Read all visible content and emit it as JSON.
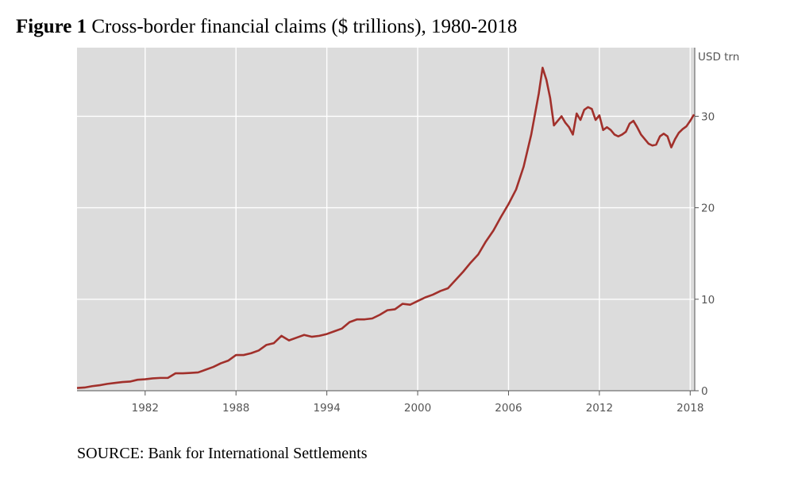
{
  "figure": {
    "label": "Figure 1",
    "title": "Cross-border financial claims ($ trillions), 1980-2018",
    "source": "SOURCE: Bank for International Settlements"
  },
  "chart_data": {
    "type": "line",
    "title": "Figure 1 Cross-border financial claims ($ trillions), 1980-2018",
    "xlabel": "",
    "ylabel": "USD trn",
    "xlim": [
      1977.5,
      2018.3
    ],
    "ylim": [
      0,
      37.5
    ],
    "x_ticks": [
      1982,
      1988,
      1994,
      2000,
      2006,
      2012,
      2018
    ],
    "y_ticks": [
      0,
      10,
      20,
      30
    ],
    "grid": true,
    "legend": "none",
    "colors": {
      "line": "#a1302b",
      "plot_bg": "#dcdcdc",
      "grid": "#ffffff",
      "axis": "#555555"
    },
    "series": [
      {
        "x": [
          1977.5,
          1978.0,
          1978.5,
          1979.0,
          1979.5,
          1980.0,
          1980.5,
          1981.0,
          1981.5,
          1982.0,
          1982.5,
          1983.0,
          1983.5,
          1984.0,
          1984.5,
          1985.0,
          1985.5,
          1986.0,
          1986.5,
          1987.0,
          1987.5,
          1988.0,
          1988.5,
          1989.0,
          1989.5,
          1990.0,
          1990.5,
          1991.0,
          1991.5,
          1992.0,
          1992.5,
          1993.0,
          1993.5,
          1994.0,
          1994.5,
          1995.0,
          1995.5,
          1996.0,
          1996.5,
          1997.0,
          1997.5,
          1998.0,
          1998.5,
          1999.0,
          1999.5,
          2000.0,
          2000.5,
          2001.0,
          2001.5,
          2002.0,
          2002.5,
          2003.0,
          2003.5,
          2004.0,
          2004.5,
          2005.0,
          2005.5,
          2006.0,
          2006.5,
          2007.0,
          2007.5,
          2008.0,
          2008.25,
          2008.5,
          2008.75,
          2009.0,
          2009.25,
          2009.5,
          2009.75,
          2010.0,
          2010.25,
          2010.5,
          2010.75,
          2011.0,
          2011.25,
          2011.5,
          2011.75,
          2012.0,
          2012.25,
          2012.5,
          2012.75,
          2013.0,
          2013.25,
          2013.5,
          2013.75,
          2014.0,
          2014.25,
          2014.5,
          2014.75,
          2015.0,
          2015.25,
          2015.5,
          2015.75,
          2016.0,
          2016.25,
          2016.5,
          2016.75,
          2017.0,
          2017.25,
          2017.5,
          2017.75,
          2018.0,
          2018.25
        ],
        "y": [
          0.3,
          0.35,
          0.5,
          0.6,
          0.75,
          0.85,
          0.95,
          1.0,
          1.2,
          1.25,
          1.35,
          1.4,
          1.4,
          1.9,
          1.9,
          1.95,
          2.0,
          2.3,
          2.6,
          3.0,
          3.3,
          3.9,
          3.9,
          4.1,
          4.4,
          5.0,
          5.2,
          6.0,
          5.5,
          5.8,
          6.1,
          5.9,
          6.0,
          6.2,
          6.5,
          6.8,
          7.5,
          7.8,
          7.8,
          7.9,
          8.3,
          8.8,
          8.9,
          9.5,
          9.4,
          9.8,
          10.2,
          10.5,
          10.9,
          11.2,
          12.1,
          13.0,
          14.0,
          14.9,
          16.3,
          17.5,
          19.0,
          20.4,
          22.0,
          24.5,
          28.0,
          32.5,
          35.3,
          34.0,
          32.0,
          29.0,
          29.5,
          30.0,
          29.3,
          28.8,
          28.0,
          30.3,
          29.6,
          30.7,
          31.0,
          30.8,
          29.6,
          30.1,
          28.5,
          28.8,
          28.5,
          28.0,
          27.8,
          28.0,
          28.3,
          29.2,
          29.5,
          28.8,
          28.0,
          27.5,
          27.0,
          26.8,
          26.9,
          27.8,
          28.1,
          27.8,
          26.6,
          27.5,
          28.2,
          28.6,
          28.9,
          29.5,
          30.2
        ]
      }
    ]
  }
}
